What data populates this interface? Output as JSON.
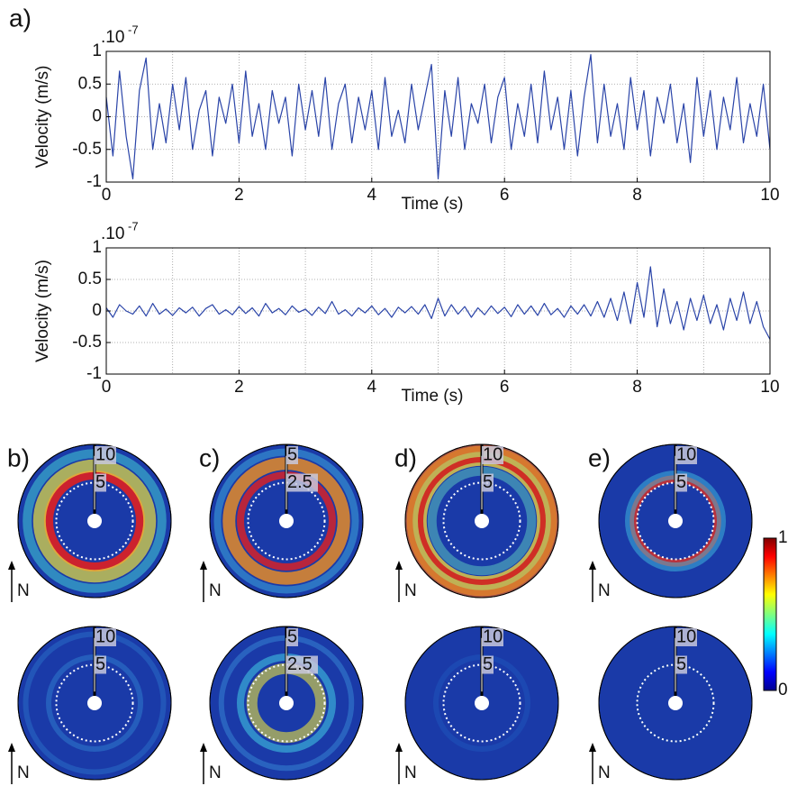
{
  "chart_data": [
    {
      "type": "line",
      "panel_label": "a)",
      "ylabel": "Velocity (m/s)",
      "xlabel": "Time (s)",
      "scale_label": ".10",
      "scale_exponent": "-7",
      "xlim": [
        0,
        10
      ],
      "xticks": [
        0,
        2,
        4,
        6,
        8,
        10
      ],
      "minor_xticks": [
        1,
        3,
        5,
        7,
        9
      ],
      "ylim": [
        -1,
        1
      ],
      "yticks": [
        -1,
        -0.5,
        0,
        0.5,
        1
      ],
      "grid": true,
      "color": "#2a44a8",
      "x": [
        0,
        0.1,
        0.2,
        0.3,
        0.4,
        0.5,
        0.6,
        0.7,
        0.8,
        0.9,
        1,
        1.1,
        1.2,
        1.3,
        1.4,
        1.5,
        1.6,
        1.7,
        1.8,
        1.9,
        2,
        2.1,
        2.2,
        2.3,
        2.4,
        2.5,
        2.6,
        2.7,
        2.8,
        2.9,
        3,
        3.1,
        3.2,
        3.3,
        3.4,
        3.5,
        3.6,
        3.7,
        3.8,
        3.9,
        4,
        4.1,
        4.2,
        4.3,
        4.4,
        4.5,
        4.6,
        4.7,
        4.8,
        4.9,
        5,
        5.1,
        5.2,
        5.3,
        5.4,
        5.5,
        5.6,
        5.7,
        5.8,
        5.9,
        6,
        6.1,
        6.2,
        6.3,
        6.4,
        6.5,
        6.6,
        6.7,
        6.8,
        6.9,
        7,
        7.1,
        7.2,
        7.3,
        7.4,
        7.5,
        7.6,
        7.7,
        7.8,
        7.9,
        8,
        8.1,
        8.2,
        8.3,
        8.4,
        8.5,
        8.6,
        8.7,
        8.8,
        8.9,
        9,
        9.1,
        9.2,
        9.3,
        9.4,
        9.5,
        9.6,
        9.7,
        9.8,
        9.9,
        10
      ],
      "values": [
        0.3,
        -0.6,
        0.7,
        -0.3,
        -0.95,
        0.4,
        0.9,
        -0.5,
        0.2,
        -0.4,
        0.5,
        -0.2,
        0.6,
        -0.5,
        0.1,
        0.4,
        -0.6,
        0.3,
        -0.1,
        0.5,
        -0.4,
        0.7,
        -0.3,
        0.2,
        -0.5,
        0.4,
        -0.1,
        0.3,
        -0.6,
        0.5,
        -0.2,
        0.4,
        -0.3,
        0.6,
        -0.5,
        0.2,
        0.5,
        -0.4,
        0.3,
        -0.2,
        0.4,
        -0.5,
        0.6,
        -0.3,
        0.1,
        -0.4,
        0.5,
        -0.2,
        0.3,
        0.8,
        -0.95,
        0.4,
        -0.3,
        0.6,
        -0.5,
        0.2,
        -0.1,
        0.5,
        -0.4,
        0.3,
        0.6,
        -0.5,
        0.2,
        -0.3,
        0.5,
        -0.4,
        0.7,
        -0.2,
        0.3,
        -0.5,
        0.4,
        -0.6,
        0.3,
        0.95,
        -0.4,
        0.5,
        -0.3,
        0.2,
        -0.5,
        0.6,
        -0.2,
        0.4,
        -0.6,
        0.3,
        -0.1,
        0.5,
        -0.4,
        0.2,
        -0.7,
        0.6,
        -0.3,
        0.4,
        -0.5,
        0.3,
        -0.2,
        0.6,
        -0.4,
        0.2,
        -0.3,
        0.5,
        -0.5
      ]
    },
    {
      "type": "line",
      "ylabel": "Velocity (m/s)",
      "xlabel": "Time (s)",
      "scale_label": ".10",
      "scale_exponent": "-7",
      "xlim": [
        0,
        10
      ],
      "xticks": [
        0,
        2,
        4,
        6,
        8,
        10
      ],
      "minor_xticks": [
        1,
        3,
        5,
        7,
        9
      ],
      "ylim": [
        -1,
        1
      ],
      "yticks": [
        -1,
        -0.5,
        0,
        0.5,
        1
      ],
      "grid": true,
      "color": "#2a44a8",
      "x": [
        0,
        0.1,
        0.2,
        0.3,
        0.4,
        0.5,
        0.6,
        0.7,
        0.8,
        0.9,
        1,
        1.1,
        1.2,
        1.3,
        1.4,
        1.5,
        1.6,
        1.7,
        1.8,
        1.9,
        2,
        2.1,
        2.2,
        2.3,
        2.4,
        2.5,
        2.6,
        2.7,
        2.8,
        2.9,
        3,
        3.1,
        3.2,
        3.3,
        3.4,
        3.5,
        3.6,
        3.7,
        3.8,
        3.9,
        4,
        4.1,
        4.2,
        4.3,
        4.4,
        4.5,
        4.6,
        4.7,
        4.8,
        4.9,
        5,
        5.1,
        5.2,
        5.3,
        5.4,
        5.5,
        5.6,
        5.7,
        5.8,
        5.9,
        6,
        6.1,
        6.2,
        6.3,
        6.4,
        6.5,
        6.6,
        6.7,
        6.8,
        6.9,
        7,
        7.1,
        7.2,
        7.3,
        7.4,
        7.5,
        7.6,
        7.7,
        7.8,
        7.9,
        8,
        8.1,
        8.2,
        8.3,
        8.4,
        8.5,
        8.6,
        8.7,
        8.8,
        8.9,
        9,
        9.1,
        9.2,
        9.3,
        9.4,
        9.5,
        9.6,
        9.7,
        9.8,
        9.9,
        10
      ],
      "values": [
        0.05,
        -0.1,
        0.1,
        0,
        -0.05,
        0.08,
        -0.08,
        0.12,
        -0.05,
        0.03,
        -0.07,
        0.05,
        -0.03,
        0.06,
        -0.08,
        0.04,
        0.1,
        -0.05,
        0.02,
        -0.06,
        0.07,
        -0.04,
        0.05,
        -0.08,
        0.12,
        -0.03,
        0.04,
        -0.06,
        0.08,
        -0.02,
        0.03,
        -0.07,
        0.06,
        -0.04,
        0.15,
        -0.05,
        0.02,
        -0.08,
        0.05,
        -0.03,
        0.08,
        -0.06,
        0.04,
        -0.1,
        0.06,
        -0.03,
        0.07,
        -0.05,
        0.1,
        -0.12,
        0.2,
        -0.08,
        0.1,
        -0.05,
        0.07,
        -0.1,
        0.05,
        -0.06,
        0.08,
        -0.04,
        0.06,
        -0.09,
        0.1,
        -0.05,
        0.08,
        -0.07,
        0.12,
        -0.06,
        0.04,
        -0.1,
        0.08,
        -0.05,
        0.1,
        -0.08,
        0.15,
        -0.1,
        0.2,
        -0.15,
        0.3,
        -0.2,
        0.45,
        -0.1,
        0.7,
        -0.25,
        0.35,
        -0.2,
        0.15,
        -0.3,
        0.2,
        -0.15,
        0.25,
        -0.2,
        0.1,
        -0.3,
        0.2,
        -0.15,
        0.3,
        -0.2,
        0.15,
        -0.25,
        -0.45
      ]
    },
    {
      "type": "polar",
      "panel_label": "b)",
      "rlim": [
        0,
        10
      ],
      "rticks": [
        5,
        10
      ],
      "north": "N"
    },
    {
      "type": "polar",
      "panel_label": "c)",
      "rlim": [
        0,
        5
      ],
      "rticks": [
        2.5,
        5
      ],
      "north": "N"
    },
    {
      "type": "polar",
      "panel_label": "d)",
      "rlim": [
        0,
        10
      ],
      "rticks": [
        5,
        10
      ],
      "north": "N"
    },
    {
      "type": "polar",
      "panel_label": "e)",
      "rlim": [
        0,
        10
      ],
      "rticks": [
        5,
        10
      ],
      "north": "N"
    },
    {
      "type": "polar",
      "rlim": [
        0,
        10
      ],
      "rticks": [
        5,
        10
      ],
      "north": "N"
    },
    {
      "type": "polar",
      "rlim": [
        0,
        5
      ],
      "rticks": [
        2.5,
        5
      ],
      "north": "N"
    },
    {
      "type": "polar",
      "rlim": [
        0,
        10
      ],
      "rticks": [
        5,
        10
      ],
      "north": "N"
    },
    {
      "type": "polar",
      "rlim": [
        0,
        10
      ],
      "rticks": [
        5,
        10
      ],
      "north": "N"
    },
    {
      "type": "colorbar",
      "ylim": [
        0,
        1
      ],
      "yticks": [
        0,
        1
      ]
    }
  ]
}
